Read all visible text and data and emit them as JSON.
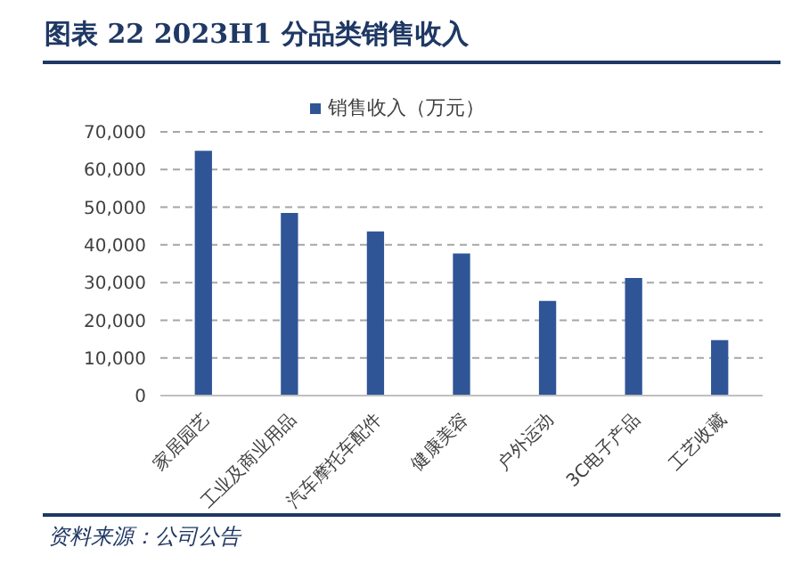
{
  "chart_data": {
    "type": "bar",
    "title": "图表 22  2023H1 分品类销售收入",
    "categories": [
      "家居园艺",
      "工业及商业用品",
      "汽车摩托车配件",
      "健康美容",
      "户外运动",
      "3C电子产品",
      "工艺收藏"
    ],
    "series": [
      {
        "name": "销售收入（万元）",
        "color": "#2f5597",
        "values": [
          65000,
          48500,
          43600,
          37700,
          25100,
          31200,
          14700
        ]
      }
    ],
    "ylim": [
      0,
      70000
    ],
    "yticks": [
      0,
      {
        "value": 10000,
        "label": "10,000"
      },
      {
        "value": 20000,
        "label": "20,000"
      },
      {
        "value": 30000,
        "label": "30,000"
      },
      {
        "value": 40000,
        "label": "40,000"
      },
      {
        "value": 50000,
        "label": "50,000"
      },
      {
        "value": 60000,
        "label": "60,000"
      },
      {
        "value": 70000,
        "label": "70,000"
      }
    ],
    "grid": "y",
    "legend": "top",
    "annotations": [
      "资料来源：公司公告"
    ]
  }
}
